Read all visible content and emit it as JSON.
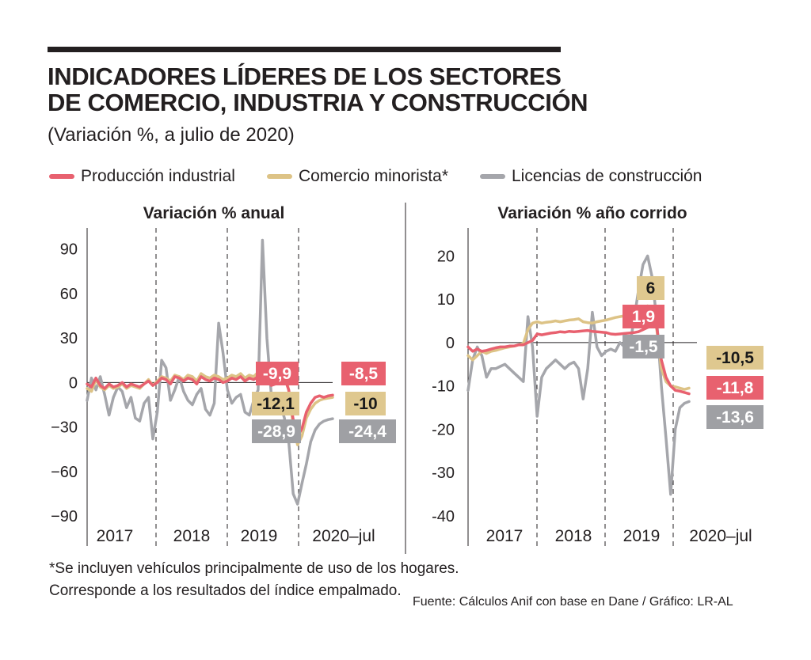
{
  "title_line1": "INDICADORES LÍDERES DE LOS SECTORES",
  "title_line2": "DE COMERCIO, INDUSTRIA Y CONSTRUCCIÓN",
  "subtitle": "(Variación %, a julio de 2020)",
  "legend": [
    {
      "label": "Producción industrial",
      "color": "#e8616f"
    },
    {
      "label": "Comercio minorista*",
      "color": "#ddc386"
    },
    {
      "label": "Licencias de construcción",
      "color": "#a5a6ab"
    }
  ],
  "colors": {
    "industrial": "#e8616f",
    "comercio": "#ddc386",
    "licencias": "#a5a6ab",
    "label_industrial_bg": "#e8616f",
    "label_comercio_bg": "#dfc88f",
    "label_licencias_bg": "#9fa0a4"
  },
  "footnote_line1": "*Se incluyen vehículos principalmente de uso de los hogares.",
  "footnote_line2": "Corresponde a los resultados del índice empalmado.",
  "source": "Fuente: Cálculos Anif con base en Dane / Gráfico: LR-AL",
  "chart_data": [
    {
      "type": "line",
      "title": "Variación % anual",
      "x_labels": [
        "2017",
        "2018",
        "2019",
        "2020–jul"
      ],
      "ylim": [
        -90,
        100
      ],
      "yticks": [
        "90",
        "60",
        "30",
        "0",
        "−30",
        "−60",
        "−90"
      ],
      "ytick_values": [
        90,
        60,
        30,
        0,
        -30,
        -60,
        -90
      ],
      "series": [
        {
          "name": "Producción industrial",
          "values": [
            -1,
            -3,
            3,
            -2,
            -4,
            -1,
            -3,
            -2,
            0,
            -3,
            -1,
            -2,
            -3,
            -1,
            1,
            -2,
            0,
            3,
            2,
            -1,
            4,
            3,
            1,
            3,
            2,
            -1,
            4,
            2,
            1,
            3,
            2,
            0,
            1,
            3,
            2,
            4,
            1,
            3,
            2,
            4,
            3,
            2,
            -2,
            -1,
            2,
            3,
            -5,
            -25,
            -36,
            -31,
            -20,
            -14,
            -10,
            -9,
            -10,
            -9,
            -8.5
          ]
        },
        {
          "name": "Comercio minorista*",
          "values": [
            -4,
            -6,
            2,
            -3,
            -5,
            -2,
            -4,
            -3,
            -1,
            -4,
            -2,
            -3,
            -4,
            -1,
            2,
            -2,
            1,
            4,
            3,
            1,
            5,
            4,
            2,
            5,
            4,
            1,
            6,
            4,
            3,
            5,
            4,
            2,
            3,
            5,
            4,
            6,
            3,
            5,
            4,
            7,
            6,
            4,
            8,
            5,
            9,
            11,
            -6,
            -29,
            -42,
            -36,
            -24,
            -18,
            -14,
            -12,
            -11,
            -10.5,
            -10
          ]
        },
        {
          "name": "Licencias de construcción",
          "values": [
            -12,
            3,
            -5,
            4,
            -8,
            -22,
            -10,
            -3,
            -6,
            -17,
            -10,
            -24,
            -26,
            -14,
            -10,
            -38,
            -20,
            15,
            10,
            -12,
            -5,
            4,
            -6,
            -12,
            -15,
            -8,
            -4,
            -18,
            -22,
            -14,
            40,
            20,
            -5,
            -14,
            -10,
            -8,
            -20,
            -22,
            -12,
            -5,
            96,
            30,
            -8,
            -20,
            -14,
            -24,
            -40,
            -75,
            -82,
            -68,
            -55,
            -40,
            -32,
            -28,
            -26,
            -25,
            -24.4
          ]
        }
      ],
      "annotations": [
        {
          "text": "-9,9",
          "series": "Producción industrial"
        },
        {
          "text": "-12,1",
          "series": "Comercio minorista*"
        },
        {
          "text": "-28,9",
          "series": "Licencias de construcción"
        },
        {
          "text": "-8,5",
          "series": "Producción industrial"
        },
        {
          "text": "-10",
          "series": "Comercio minorista*"
        },
        {
          "text": "-24,4",
          "series": "Licencias de construcción"
        }
      ]
    },
    {
      "type": "line",
      "title": "Variación % año corrido",
      "x_labels": [
        "2017",
        "2018",
        "2019",
        "2020–jul"
      ],
      "ylim": [
        -40,
        25
      ],
      "yticks": [
        "20",
        "10",
        "0",
        "-10",
        "-20",
        "-30",
        "-40"
      ],
      "ytick_values": [
        20,
        10,
        0,
        -10,
        -20,
        -30,
        -40
      ],
      "series": [
        {
          "name": "Producción industrial",
          "values": [
            -1,
            -2,
            -1.5,
            -2,
            -1.8,
            -1.5,
            -1.2,
            -1,
            -1,
            -0.8,
            -0.8,
            -0.5,
            -0.5,
            0,
            0.5,
            2,
            1.8,
            2,
            2.2,
            2.3,
            2.5,
            2.4,
            2.6,
            2.5,
            2.6,
            2.7,
            2.8,
            2.6,
            2.5,
            2.4,
            2.3,
            2,
            1.9,
            2,
            2.1,
            2.2,
            2.3,
            2.5,
            3,
            3.5,
            3.8,
            3.5,
            -4,
            -8,
            -10,
            -11,
            -11.2,
            -11.5,
            -11.8
          ]
        },
        {
          "name": "Comercio minorista*",
          "values": [
            -3,
            -4,
            -3,
            -2,
            -2.5,
            -2,
            -1.8,
            -1.5,
            -1.2,
            -1,
            -0.8,
            -0.5,
            -0.2,
            3,
            4.5,
            4.8,
            4.5,
            4.7,
            4.8,
            5,
            4.8,
            5,
            5.2,
            5.3,
            5.5,
            4.8,
            4.6,
            4.5,
            4.8,
            5,
            5.2,
            5.5,
            5.8,
            6,
            6.2,
            6.5,
            7,
            7.5,
            8,
            8.5,
            8,
            3,
            -6,
            -9,
            -10,
            -10.2,
            -10.5,
            -10.8,
            -10.5
          ]
        },
        {
          "name": "Licencias de construcción",
          "values": [
            -11,
            -4,
            -1,
            -3,
            -8,
            -6,
            -6,
            -5.5,
            -5,
            -6,
            -7,
            -8,
            -9,
            6,
            -1,
            -17,
            -8,
            -6,
            -5,
            -4,
            -5,
            -6,
            -5,
            -4.5,
            -6,
            -13,
            -6,
            7,
            -1,
            -3,
            -2,
            -1.5,
            -2,
            0,
            -1,
            -1.5,
            5,
            12,
            18,
            20,
            15,
            5,
            -10,
            -22,
            -35,
            -20,
            -15,
            -14,
            -13.6
          ]
        }
      ],
      "annotations": [
        {
          "text": "6",
          "series": "Comercio minorista*"
        },
        {
          "text": "1,9",
          "series": "Producción industrial"
        },
        {
          "text": "-1,5",
          "series": "Licencias de construcción"
        },
        {
          "text": "-10,5",
          "series": "Comercio minorista*"
        },
        {
          "text": "-11,8",
          "series": "Producción industrial"
        },
        {
          "text": "-13,6",
          "series": "Licencias de construcción"
        }
      ]
    }
  ]
}
